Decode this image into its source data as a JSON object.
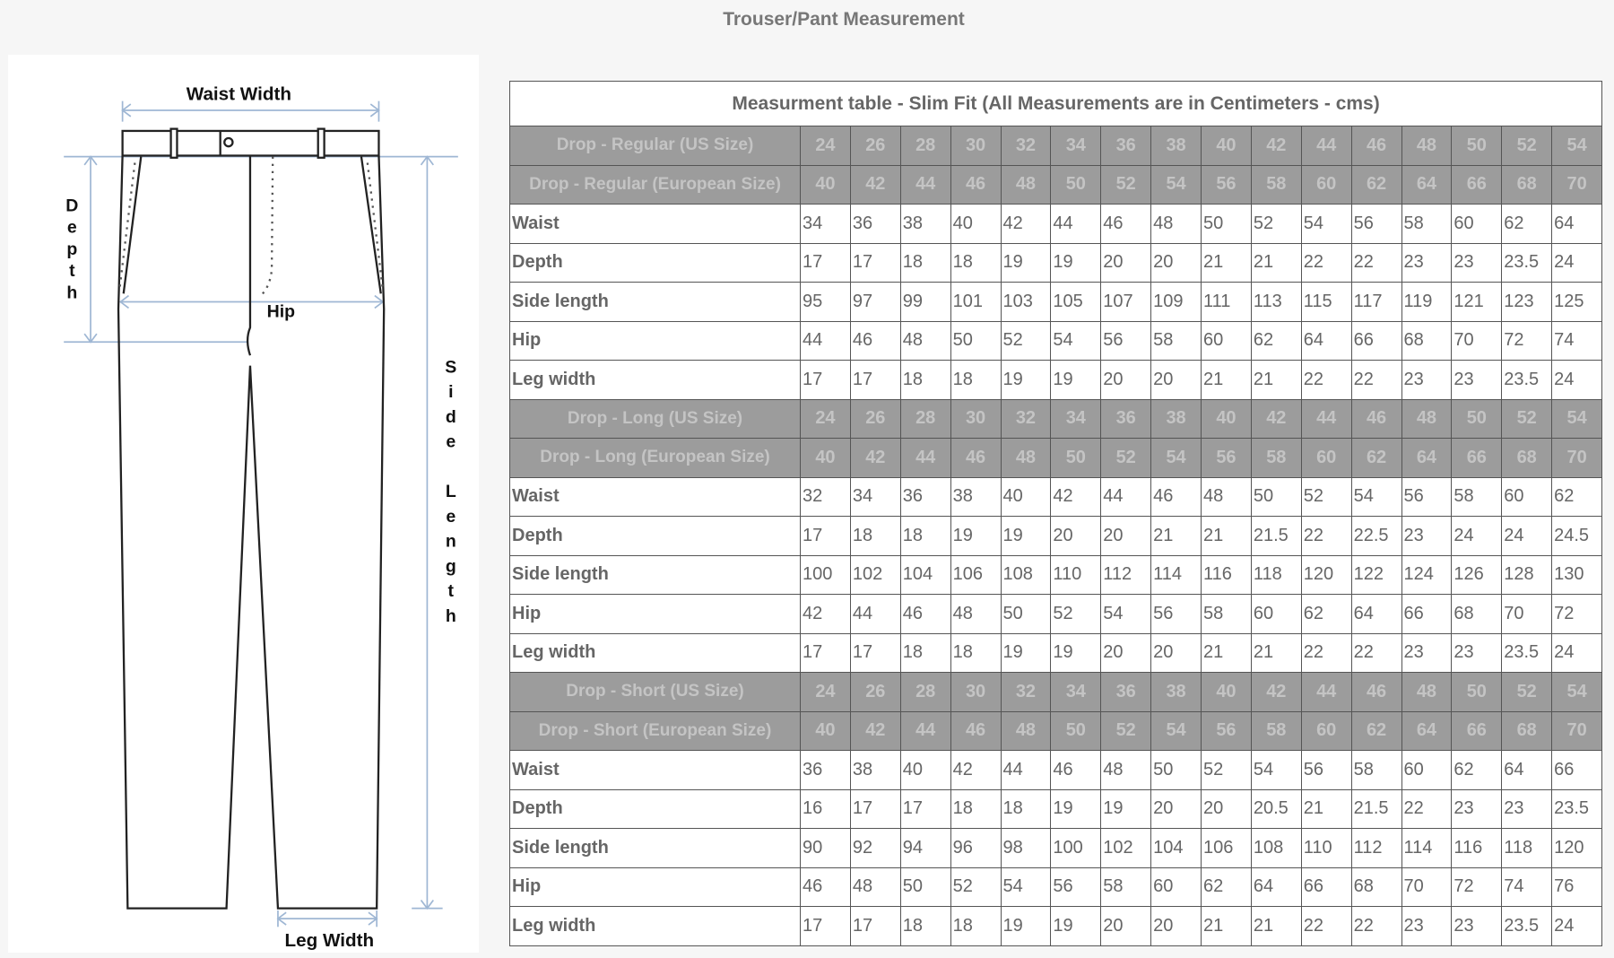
{
  "header": {
    "title": "Trouser/Pant Measurement"
  },
  "diagram": {
    "waist_width": "Waist Width",
    "depth": "Depth",
    "hip": "Hip",
    "side_length": "Side Length",
    "leg_width": "Leg Width"
  },
  "table": {
    "title": "Measurment table - Slim Fit (All Measurements are in Centimeters - cms)",
    "sections": [
      {
        "us_label": "Drop - Regular (US Size)",
        "us_sizes": [
          24,
          26,
          28,
          30,
          32,
          34,
          36,
          38,
          40,
          42,
          44,
          46,
          48,
          50,
          52,
          54
        ],
        "eu_label": "Drop - Regular (European Size)",
        "eu_sizes": [
          40,
          42,
          44,
          46,
          48,
          50,
          52,
          54,
          56,
          58,
          60,
          62,
          64,
          66,
          68,
          70
        ],
        "rows": [
          {
            "label": "Waist",
            "values": [
              34,
              36,
              38,
              40,
              42,
              44,
              46,
              48,
              50,
              52,
              54,
              56,
              58,
              60,
              62,
              64
            ]
          },
          {
            "label": "Depth",
            "values": [
              17,
              17,
              18,
              18,
              19,
              19,
              20,
              20,
              21,
              21,
              22,
              22,
              23,
              23,
              23.5,
              24
            ]
          },
          {
            "label": "Side length",
            "values": [
              95,
              97,
              99,
              101,
              103,
              105,
              107,
              109,
              111,
              113,
              115,
              117,
              119,
              121,
              123,
              125
            ]
          },
          {
            "label": "Hip",
            "values": [
              44,
              46,
              48,
              50,
              52,
              54,
              56,
              58,
              60,
              62,
              64,
              66,
              68,
              70,
              72,
              74
            ]
          },
          {
            "label": "Leg width",
            "values": [
              17,
              17,
              18,
              18,
              19,
              19,
              20,
              20,
              21,
              21,
              22,
              22,
              23,
              23,
              23.5,
              24
            ]
          }
        ]
      },
      {
        "us_label": "Drop - Long (US Size)",
        "us_sizes": [
          24,
          26,
          28,
          30,
          32,
          34,
          36,
          38,
          40,
          42,
          44,
          46,
          48,
          50,
          52,
          54
        ],
        "eu_label": "Drop - Long (European Size)",
        "eu_sizes": [
          40,
          42,
          44,
          46,
          48,
          50,
          52,
          54,
          56,
          58,
          60,
          62,
          64,
          66,
          68,
          70
        ],
        "rows": [
          {
            "label": "Waist",
            "values": [
              32,
              34,
              36,
              38,
              40,
              42,
              44,
              46,
              48,
              50,
              52,
              54,
              56,
              58,
              60,
              62
            ]
          },
          {
            "label": "Depth",
            "values": [
              17,
              18,
              18,
              19,
              19,
              20,
              20,
              21,
              21,
              21.5,
              22,
              22.5,
              23,
              24,
              24,
              24.5
            ]
          },
          {
            "label": "Side length",
            "values": [
              100,
              102,
              104,
              106,
              108,
              110,
              112,
              114,
              116,
              118,
              120,
              122,
              124,
              126,
              128,
              130
            ]
          },
          {
            "label": "Hip",
            "values": [
              42,
              44,
              46,
              48,
              50,
              52,
              54,
              56,
              58,
              60,
              62,
              64,
              66,
              68,
              70,
              72
            ]
          },
          {
            "label": "Leg width",
            "values": [
              17,
              17,
              18,
              18,
              19,
              19,
              20,
              20,
              21,
              21,
              22,
              22,
              23,
              23,
              23.5,
              24
            ]
          }
        ]
      },
      {
        "us_label": "Drop - Short (US Size)",
        "us_sizes": [
          24,
          26,
          28,
          30,
          32,
          34,
          36,
          38,
          40,
          42,
          44,
          46,
          48,
          50,
          52,
          54
        ],
        "eu_label": "Drop - Short (European Size)",
        "eu_sizes": [
          40,
          42,
          44,
          46,
          48,
          50,
          52,
          54,
          56,
          58,
          60,
          62,
          64,
          66,
          68,
          70
        ],
        "rows": [
          {
            "label": "Waist",
            "values": [
              36,
              38,
              40,
              42,
              44,
              46,
              48,
              50,
              52,
              54,
              56,
              58,
              60,
              62,
              64,
              66
            ]
          },
          {
            "label": "Depth",
            "values": [
              16,
              17,
              17,
              18,
              18,
              19,
              19,
              20,
              20,
              20.5,
              21,
              21.5,
              22,
              23,
              23,
              23.5
            ]
          },
          {
            "label": "Side length",
            "values": [
              90,
              92,
              94,
              96,
              98,
              100,
              102,
              104,
              106,
              108,
              110,
              112,
              114,
              116,
              118,
              120
            ]
          },
          {
            "label": "Hip",
            "values": [
              46,
              48,
              50,
              52,
              54,
              56,
              58,
              60,
              62,
              64,
              66,
              68,
              70,
              72,
              74,
              76
            ]
          },
          {
            "label": "Leg width",
            "values": [
              17,
              17,
              18,
              18,
              19,
              19,
              20,
              20,
              21,
              21,
              22,
              22,
              23,
              23,
              23.5,
              24
            ]
          }
        ]
      }
    ]
  }
}
